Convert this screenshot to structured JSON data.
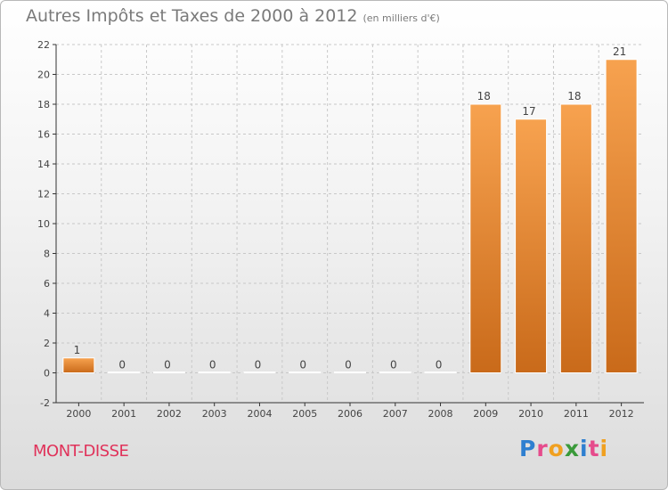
{
  "header": {
    "title": "Autres Impôts et Taxes de 2000 à 2012",
    "subtitle": "(en milliers d'€)"
  },
  "footer": {
    "commune": "MONT-DISSE",
    "logo_letters": [
      "P",
      "r",
      "o",
      "x",
      "i",
      "t",
      "i"
    ],
    "logo_colors": [
      "#2e7fd0",
      "#e64b8c",
      "#f0a020",
      "#3a9a3a",
      "#2e7fd0",
      "#e64b8c",
      "#f0a020"
    ]
  },
  "colors": {
    "bar_light": "#f7a24f",
    "bar_dark": "#c96a1a",
    "axis": "#333333",
    "grid": "#c8c8c8",
    "text": "#444444"
  },
  "chart_data": {
    "type": "bar",
    "categories": [
      "2000",
      "2001",
      "2002",
      "2003",
      "2004",
      "2005",
      "2006",
      "2007",
      "2008",
      "2009",
      "2010",
      "2011",
      "2012"
    ],
    "values": [
      1,
      0,
      0,
      0,
      0,
      0,
      0,
      0,
      0,
      18,
      17,
      18,
      21
    ],
    "value_labels": [
      "1",
      "0",
      "0",
      "0",
      "0",
      "0",
      "0",
      "0",
      "0",
      "18",
      "17",
      "18",
      "21"
    ],
    "ylim": [
      -2,
      22
    ],
    "yticks": [
      -2,
      0,
      2,
      4,
      6,
      8,
      10,
      12,
      14,
      16,
      18,
      20,
      22
    ],
    "grid": true,
    "xlabel": "",
    "ylabel": ""
  }
}
